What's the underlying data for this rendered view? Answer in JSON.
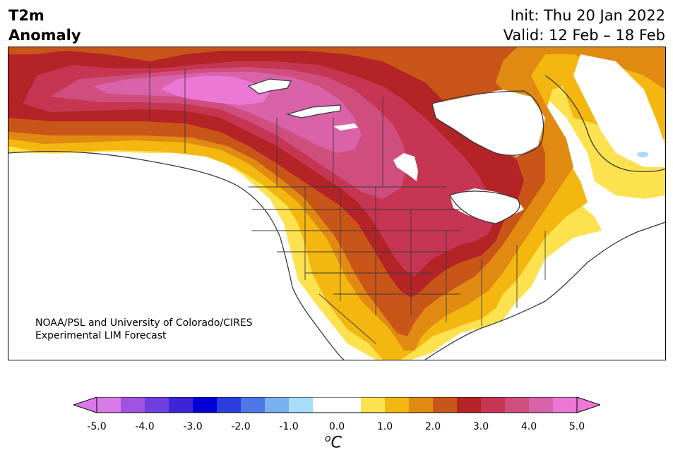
{
  "header": {
    "variable_line1": "T2m",
    "variable_line2": "Anomaly",
    "init": "Init: Thu 20 Jan 2022",
    "valid": "Valid: 12 Feb – 18 Feb"
  },
  "credit": {
    "line1": "NOAA/PSL and University of Colorado/CIRES",
    "line2": "Experimental LIM Forecast"
  },
  "map": {
    "region": "North America",
    "anomaly_pattern": {
      "peak_region": "Northwest Territories / Nunavut interior",
      "peak_level": "4.0-5.0",
      "warm_band": "Alaska through central US to Gulf Coast and East",
      "neutral_regions": [
        "Pacific Northwest coast",
        "California",
        "Hudson Bay",
        "Labrador interior",
        "Mexico"
      ],
      "cool_spot": "near Newfoundland"
    }
  },
  "colorbar": {
    "units_base": "C",
    "units_sup": "o",
    "ticks": [
      "-5.0",
      "-4.0",
      "-3.0",
      "-2.0",
      "-1.0",
      "0.0",
      "1.0",
      "2.0",
      "3.0",
      "4.0",
      "5.0"
    ],
    "colors": [
      "#d87ae8",
      "#a052e0",
      "#6e3ee0",
      "#3d24d8",
      "#0000d4",
      "#2a3ee0",
      "#4e78e8",
      "#78b0f0",
      "#a8dcf8",
      "#ffffff",
      "#ffffff",
      "#fde24f",
      "#f3b70f",
      "#e08a12",
      "#c95618",
      "#b42325",
      "#c63552",
      "#d04e7e",
      "#d962a8",
      "#ec78d6"
    ]
  }
}
